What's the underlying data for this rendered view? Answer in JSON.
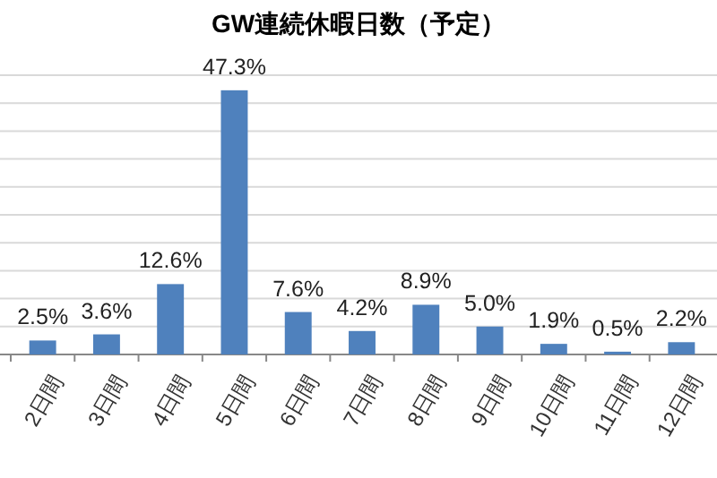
{
  "chart_data": {
    "type": "bar",
    "title": "GW連続休暇日数（予定）",
    "categories": [
      "2日間",
      "3日間",
      "4日間",
      "5日間",
      "6日間",
      "7日間",
      "8日間",
      "9日間",
      "10日間",
      "11日間",
      "12日間"
    ],
    "values": [
      2.5,
      3.6,
      12.6,
      47.3,
      7.6,
      4.2,
      8.9,
      5.0,
      1.9,
      0.5,
      2.2
    ],
    "value_labels": [
      "2.5%",
      "3.6%",
      "12.6%",
      "47.3%",
      "7.6%",
      "4.2%",
      "8.9%",
      "5.0%",
      "1.9%",
      "0.5%",
      "2.2%"
    ],
    "color": "#4f81bd",
    "ylim": [
      0,
      50
    ],
    "yticks": [
      {
        "value": 0,
        "label": null
      },
      {
        "value": 5,
        "label": null
      },
      {
        "value": 10,
        "label": null
      },
      {
        "value": 15,
        "label": null
      },
      {
        "value": 20,
        "label": null
      },
      {
        "value": 25,
        "label": null
      },
      {
        "value": 30,
        "label": null
      },
      {
        "value": 35,
        "label": null
      },
      {
        "value": 40,
        "label": null
      },
      {
        "value": 45,
        "label": null
      },
      {
        "value": 50,
        "label": null
      }
    ],
    "grid": "y",
    "tick_labels": "x"
  }
}
